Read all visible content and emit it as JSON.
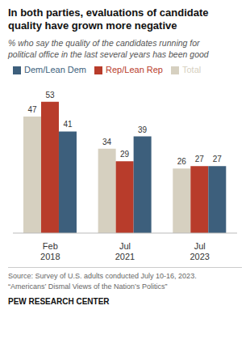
{
  "chart_data": {
    "type": "bar",
    "title": "In both parties, evaluations of candidate\nquality have grown more negative",
    "subtitle": "% who say the quality of the candidates running for\npolitical office in the last several years has been good",
    "categories": [
      "Feb\n2018",
      "Jul\n2021",
      "Jul\n2023"
    ],
    "series": [
      {
        "name": "Total",
        "color": "#d6d0c0",
        "values": [
          47,
          34,
          26
        ]
      },
      {
        "name": "Rep/Lean Rep",
        "color": "#b83c2b",
        "values": [
          53,
          29,
          27
        ]
      },
      {
        "name": "Dem/Lean Dem",
        "color": "#3d5f7c",
        "values": [
          41,
          39,
          27
        ]
      }
    ],
    "ylim": [
      0,
      62
    ],
    "data_labels": true,
    "grid": false,
    "legend": "top",
    "tick_labels": "x",
    "source": "Source: Survey of U.S. adults conducted July 10-16, 2023.\n“Americans’ Dismal Views of the Nation’s Politics”",
    "footer": "PEW RESEARCH CENTER"
  }
}
